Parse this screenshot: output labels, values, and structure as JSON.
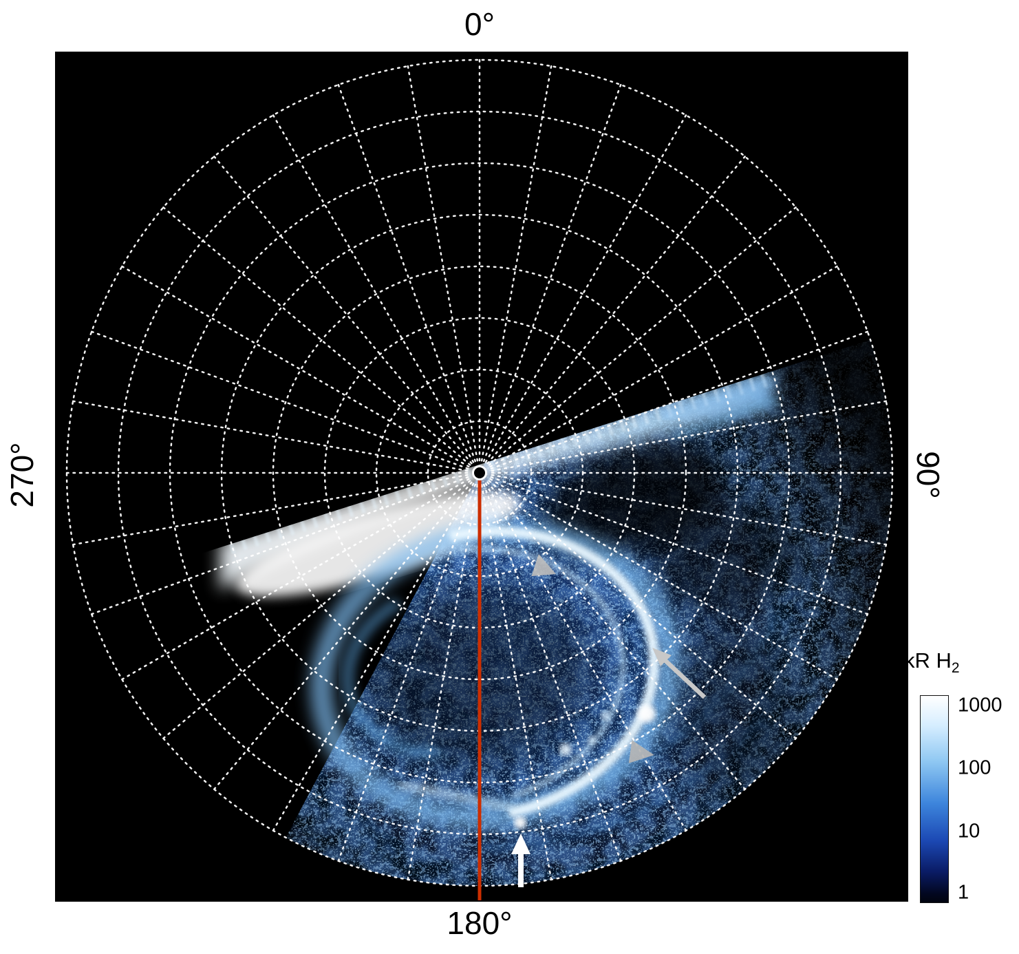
{
  "plot": {
    "background": "#000000",
    "angle_labels": {
      "top": "0°",
      "right": "90°",
      "bottom": "180°",
      "left": "270°"
    },
    "grid": {
      "rings": 8,
      "radial_step_deg": 10,
      "color": "#ffffff",
      "style": "dotted"
    },
    "meridian_line": {
      "azimuth_deg": 180,
      "color": "#cc2e00"
    }
  },
  "colorbar": {
    "title_main": "kR H",
    "title_sub": "2",
    "ticks": [
      "1000",
      "100",
      "10",
      "1"
    ],
    "scale": "log",
    "gradient_top_to_bottom": [
      "#ffffff",
      "#d7eeff",
      "#8ec7f2",
      "#3d85dc",
      "#1c49b4",
      "#0a1c66",
      "#02071f",
      "#01040f"
    ]
  },
  "chart_data": {
    "type": "heatmap",
    "projection": "polar",
    "quantity": "auroral H2 emission brightness",
    "units": "kR",
    "angular_axis": {
      "tick_labels_deg": [
        0,
        90,
        180,
        270
      ],
      "gridline_step_deg": 10,
      "zero_at": "top",
      "clockwise": true
    },
    "radial_axis": {
      "rings": 8,
      "tick_labels": []
    },
    "colorbar": {
      "label": "kR H2",
      "scale": "log",
      "tick_values": [
        1000,
        100,
        10,
        1
      ],
      "range": [
        1,
        1000
      ]
    },
    "features": [
      {
        "name": "straight emission boundary through pole",
        "azimuth_deg_from": 68,
        "azimuth_deg_to": 255,
        "intensity_kR": 1000
      },
      {
        "name": "bright fan along boundary near pole",
        "azimuth_deg": "70-255",
        "radius_frac": "0-0.45",
        "intensity_kR": "300-1000"
      },
      {
        "name": "main auroral oval ring",
        "center_azimuth_deg": 168,
        "center_radius_frac": 0.4,
        "ring_radius_frac": 0.35,
        "intensity_kR": "100-1000",
        "note": "brightest on its right/duskward side"
      },
      {
        "name": "inner swirl arc inside oval",
        "intensity_kR": "30-100"
      },
      {
        "name": "faint outer arcs",
        "azimuth_deg": "115-185",
        "radius_frac": "0.75-0.9",
        "intensity_kR": "10-30"
      },
      {
        "name": "diffuse speckled emission",
        "azimuth_deg": "60-210",
        "radius_frac": "0-0.95",
        "intensity_kR": "1-10"
      },
      {
        "name": "bright point spots on equatorward arcs",
        "count": 4,
        "intensity_kR": "~1000"
      }
    ],
    "annotations": [
      {
        "type": "arrowhead",
        "color": "#bcbcbc",
        "azimuth_deg": 146,
        "radius_frac": 0.27,
        "points": "right"
      },
      {
        "type": "arrow",
        "color": "#c8c8c8",
        "azimuth_deg": 136,
        "radius_frac": 0.6,
        "points": "up-left"
      },
      {
        "type": "arrowhead",
        "color": "#b5b5b5",
        "azimuth_deg": 151,
        "radius_frac": 0.77,
        "points": "right"
      },
      {
        "type": "arrow",
        "color": "#ffffff",
        "azimuth_deg": 174,
        "radius_frac": 0.88,
        "points": "up"
      },
      {
        "type": "line",
        "name": "meridian-180",
        "color": "#cc2e00",
        "azimuth_deg": 180,
        "radius_frac_from": 0,
        "radius_frac_to": 1
      }
    ]
  }
}
